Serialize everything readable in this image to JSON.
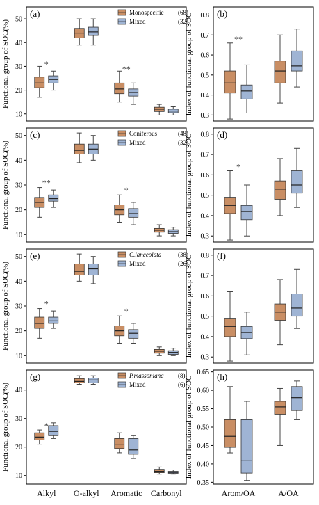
{
  "colors": {
    "group1": "#c98e64",
    "group2": "#9fb4d4",
    "frame": "#000000",
    "whisker": "#444444"
  },
  "chart_data": [
    {
      "type": "box",
      "letter": "(a)",
      "ylabel": "Functional group of SOC(%)",
      "ylim": [
        7,
        55
      ],
      "yticks": [
        10,
        20,
        30,
        40,
        50
      ],
      "categories": [
        "Alkyl",
        "O-alkyl",
        "Aromatic",
        "Carbonyl"
      ],
      "series": [
        {
          "name": "Monospecific",
          "count": "(68)",
          "boxes": [
            {
              "min": 17,
              "q1": 21,
              "median": 23,
              "q3": 25.5,
              "max": 30
            },
            {
              "min": 39,
              "q1": 42,
              "median": 44,
              "q3": 46,
              "max": 50
            },
            {
              "min": 15,
              "q1": 18.5,
              "median": 20.5,
              "q3": 23,
              "max": 28
            },
            {
              "min": 9.5,
              "q1": 11,
              "median": 12,
              "q3": 12.8,
              "max": 14
            }
          ]
        },
        {
          "name": "Mixed",
          "count": "(32)",
          "boxes": [
            {
              "min": 20,
              "q1": 23,
              "median": 24.5,
              "q3": 26,
              "max": 28
            },
            {
              "min": 39,
              "q1": 43,
              "median": 44.5,
              "q3": 46.5,
              "max": 50
            },
            {
              "min": 14,
              "q1": 17.5,
              "median": 19,
              "q3": 20.5,
              "max": 23
            },
            {
              "min": 9.5,
              "q1": 10.5,
              "median": 11.2,
              "q3": 12,
              "max": 13
            }
          ]
        }
      ],
      "significance": [
        {
          "category": "Alkyl",
          "label": "*",
          "y": 31
        },
        {
          "category": "Aromatic",
          "label": "**",
          "y": 29
        }
      ]
    },
    {
      "type": "box",
      "letter": "(b)",
      "ylabel": "Index of functional group of SOC",
      "ylim": [
        0.27,
        0.84
      ],
      "yticks": [
        0.3,
        0.4,
        0.5,
        0.6,
        0.7,
        0.8
      ],
      "categories": [
        "Arom/OA",
        "A/OA"
      ],
      "series": [
        {
          "name": "",
          "boxes": [
            {
              "min": 0.28,
              "q1": 0.41,
              "median": 0.46,
              "q3": 0.52,
              "max": 0.66
            },
            {
              "min": 0.36,
              "q1": 0.46,
              "median": 0.52,
              "q3": 0.57,
              "max": 0.7
            }
          ]
        },
        {
          "name": "",
          "boxes": [
            {
              "min": 0.31,
              "q1": 0.38,
              "median": 0.42,
              "q3": 0.45,
              "max": 0.55
            },
            {
              "min": 0.44,
              "q1": 0.52,
              "median": 0.545,
              "q3": 0.62,
              "max": 0.73
            }
          ]
        }
      ],
      "significance": [
        {
          "category": "Arom/OA",
          "label": "**",
          "y": 0.68
        }
      ]
    },
    {
      "type": "box",
      "letter": "(c)",
      "ylabel": "Functional group of SOC(%)",
      "ylim": [
        7,
        53
      ],
      "yticks": [
        10,
        20,
        30,
        40,
        50
      ],
      "categories": [
        "Alkyl",
        "O-alkyl",
        "Aromatic",
        "Carbonyl"
      ],
      "series": [
        {
          "name": "Coniferous",
          "count": "(48)",
          "boxes": [
            {
              "min": 17,
              "q1": 21,
              "median": 23,
              "q3": 25,
              "max": 29
            },
            {
              "min": 39,
              "q1": 42.5,
              "median": 44,
              "q3": 46.5,
              "max": 51
            },
            {
              "min": 15,
              "q1": 18,
              "median": 20,
              "q3": 22,
              "max": 26
            },
            {
              "min": 9.5,
              "q1": 11,
              "median": 11.8,
              "q3": 12.5,
              "max": 14
            }
          ]
        },
        {
          "name": "Mixed",
          "count": "(32)",
          "boxes": [
            {
              "min": 21,
              "q1": 23.5,
              "median": 24.5,
              "q3": 26,
              "max": 28
            },
            {
              "min": 40,
              "q1": 42.5,
              "median": 44.5,
              "q3": 46.5,
              "max": 50
            },
            {
              "min": 14,
              "q1": 17,
              "median": 18.5,
              "q3": 20.5,
              "max": 23
            },
            {
              "min": 9.5,
              "q1": 10.5,
              "median": 11.2,
              "q3": 12,
              "max": 13
            }
          ]
        }
      ],
      "significance": [
        {
          "category": "Alkyl",
          "label": "**",
          "y": 31
        },
        {
          "category": "Aromatic",
          "label": "*",
          "y": 28
        }
      ]
    },
    {
      "type": "box",
      "letter": "(d)",
      "ylabel": "Index of functional group of SOC",
      "ylim": [
        0.27,
        0.83
      ],
      "yticks": [
        0.3,
        0.4,
        0.5,
        0.6,
        0.7,
        0.8
      ],
      "categories": [
        "Arom/OA",
        "A/OA"
      ],
      "series": [
        {
          "name": "",
          "boxes": [
            {
              "min": 0.28,
              "q1": 0.41,
              "median": 0.45,
              "q3": 0.49,
              "max": 0.62
            },
            {
              "min": 0.4,
              "q1": 0.48,
              "median": 0.53,
              "q3": 0.57,
              "max": 0.68
            }
          ]
        },
        {
          "name": "",
          "boxes": [
            {
              "min": 0.3,
              "q1": 0.38,
              "median": 0.42,
              "q3": 0.45,
              "max": 0.55
            },
            {
              "min": 0.44,
              "q1": 0.51,
              "median": 0.55,
              "q3": 0.62,
              "max": 0.73
            }
          ]
        }
      ],
      "significance": [
        {
          "category": "Arom/OA",
          "label": "*",
          "y": 0.64
        }
      ]
    },
    {
      "type": "box",
      "letter": "(e)",
      "ylabel": "Functional group of SOC(%)",
      "ylim": [
        7,
        53
      ],
      "yticks": [
        10,
        20,
        30,
        40,
        50
      ],
      "categories": [
        "Alkyl",
        "O-alkyl",
        "Aromatic",
        "Carbonyl"
      ],
      "series": [
        {
          "name": "C.lanceolata",
          "italic": true,
          "count": "(38)",
          "boxes": [
            {
              "min": 17,
              "q1": 21,
              "median": 23,
              "q3": 25.5,
              "max": 29
            },
            {
              "min": 40,
              "q1": 42.5,
              "median": 44,
              "q3": 47,
              "max": 51
            },
            {
              "min": 15,
              "q1": 18,
              "median": 20,
              "q3": 22,
              "max": 26
            },
            {
              "min": 10,
              "q1": 11,
              "median": 11.8,
              "q3": 12.5,
              "max": 13.5
            }
          ]
        },
        {
          "name": "Mixed",
          "count": "(26)",
          "boxes": [
            {
              "min": 21,
              "q1": 23,
              "median": 24,
              "q3": 25.5,
              "max": 28
            },
            {
              "min": 39,
              "q1": 42.5,
              "median": 45,
              "q3": 47,
              "max": 50
            },
            {
              "min": 15,
              "q1": 17,
              "median": 19,
              "q3": 20.5,
              "max": 23
            },
            {
              "min": 10,
              "q1": 10.5,
              "median": 11.3,
              "q3": 12,
              "max": 13
            }
          ]
        }
      ],
      "significance": [
        {
          "category": "Alkyl",
          "label": "*",
          "y": 31
        },
        {
          "category": "Aromatic",
          "label": "*",
          "y": 28
        }
      ]
    },
    {
      "type": "box",
      "letter": "(f)",
      "ylabel": "Index of functional group of SOC",
      "ylim": [
        0.27,
        0.83
      ],
      "yticks": [
        0.3,
        0.4,
        0.5,
        0.6,
        0.7,
        0.8
      ],
      "categories": [
        "Arom/OA",
        "A/OA"
      ],
      "series": [
        {
          "name": "",
          "boxes": [
            {
              "min": 0.28,
              "q1": 0.4,
              "median": 0.45,
              "q3": 0.49,
              "max": 0.62
            },
            {
              "min": 0.36,
              "q1": 0.48,
              "median": 0.52,
              "q3": 0.56,
              "max": 0.68
            }
          ]
        },
        {
          "name": "",
          "boxes": [
            {
              "min": 0.31,
              "q1": 0.39,
              "median": 0.42,
              "q3": 0.45,
              "max": 0.52
            },
            {
              "min": 0.44,
              "q1": 0.5,
              "median": 0.54,
              "q3": 0.61,
              "max": 0.73
            }
          ]
        }
      ],
      "significance": []
    },
    {
      "type": "box",
      "letter": "(g)",
      "ylabel": "Functional group of SOC(%)",
      "ylim": [
        7,
        47
      ],
      "yticks": [
        10,
        20,
        30,
        40
      ],
      "categories": [
        "Alkyl",
        "O-alkyl",
        "Aromatic",
        "Carbonyl"
      ],
      "series": [
        {
          "name": "P.massoniana",
          "italic": true,
          "count": "(8)",
          "boxes": [
            {
              "min": 21,
              "q1": 22.5,
              "median": 23.5,
              "q3": 25,
              "max": 26
            },
            {
              "min": 42,
              "q1": 42.5,
              "median": 43,
              "q3": 44,
              "max": 45
            },
            {
              "min": 18,
              "q1": 19.5,
              "median": 21,
              "q3": 23,
              "max": 25
            },
            {
              "min": 10.5,
              "q1": 11,
              "median": 11.5,
              "q3": 12.2,
              "max": 13
            }
          ]
        },
        {
          "name": "Mixed",
          "count": "(6)",
          "boxes": [
            {
              "min": 23,
              "q1": 24,
              "median": 25.5,
              "q3": 27.5,
              "max": 28.5
            },
            {
              "min": 42,
              "q1": 42.5,
              "median": 43.5,
              "q3": 44.2,
              "max": 45
            },
            {
              "min": 16,
              "q1": 17.5,
              "median": 19,
              "q3": 23,
              "max": 24
            },
            {
              "min": 10.5,
              "q1": 10.8,
              "median": 11.1,
              "q3": 11.5,
              "max": 12
            }
          ]
        }
      ],
      "significance": [
        {
          "category": "Alkyl",
          "label": "*",
          "y": 27.5
        }
      ]
    },
    {
      "type": "box",
      "letter": "(h)",
      "ylabel": "Index of functional group of SOC",
      "ylim": [
        0.345,
        0.655
      ],
      "yticks": [
        0.35,
        0.4,
        0.45,
        0.5,
        0.55,
        0.6,
        0.65
      ],
      "categories": [
        "Arom/OA",
        "A/OA"
      ],
      "series": [
        {
          "name": "",
          "boxes": [
            {
              "min": 0.43,
              "q1": 0.445,
              "median": 0.475,
              "q3": 0.52,
              "max": 0.61
            },
            {
              "min": 0.45,
              "q1": 0.535,
              "median": 0.555,
              "q3": 0.57,
              "max": 0.605
            }
          ]
        },
        {
          "name": "",
          "boxes": [
            {
              "min": 0.355,
              "q1": 0.375,
              "median": 0.41,
              "q3": 0.52,
              "max": 0.57
            },
            {
              "min": 0.52,
              "q1": 0.545,
              "median": 0.58,
              "q3": 0.61,
              "max": 0.625
            }
          ]
        }
      ],
      "significance": []
    }
  ]
}
